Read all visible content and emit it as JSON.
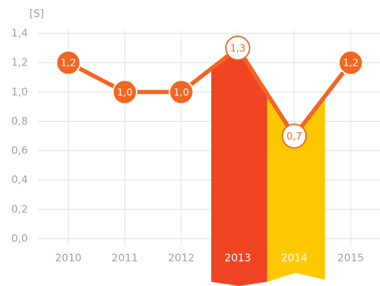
{
  "chart_data": {
    "type": "line",
    "y_label": "[S]",
    "categories": [
      "2010",
      "2011",
      "2012",
      "2013",
      "2014",
      "2015"
    ],
    "series": [
      {
        "name": "S",
        "color": "#f26522",
        "values": [
          1.2,
          1.0,
          1.0,
          1.3,
          0.7,
          1.2
        ],
        "value_labels": [
          "1,2",
          "1,0",
          "1,0",
          "1,3",
          "0,7",
          "1,2"
        ]
      }
    ],
    "ylim": [
      0,
      1.4
    ],
    "yticks": [
      {
        "value": 0,
        "label": "0,0"
      },
      {
        "value": 0.2,
        "label": "0,2"
      },
      {
        "value": 0.4,
        "label": "0,4"
      },
      {
        "value": 0.6,
        "label": "0,6"
      },
      {
        "value": 0.8,
        "label": "0,8"
      },
      {
        "value": 1.0,
        "label": "1,0"
      },
      {
        "value": 1.2,
        "label": "1,2"
      },
      {
        "value": 1.4,
        "label": "1,4"
      }
    ],
    "grid": true
  }
}
